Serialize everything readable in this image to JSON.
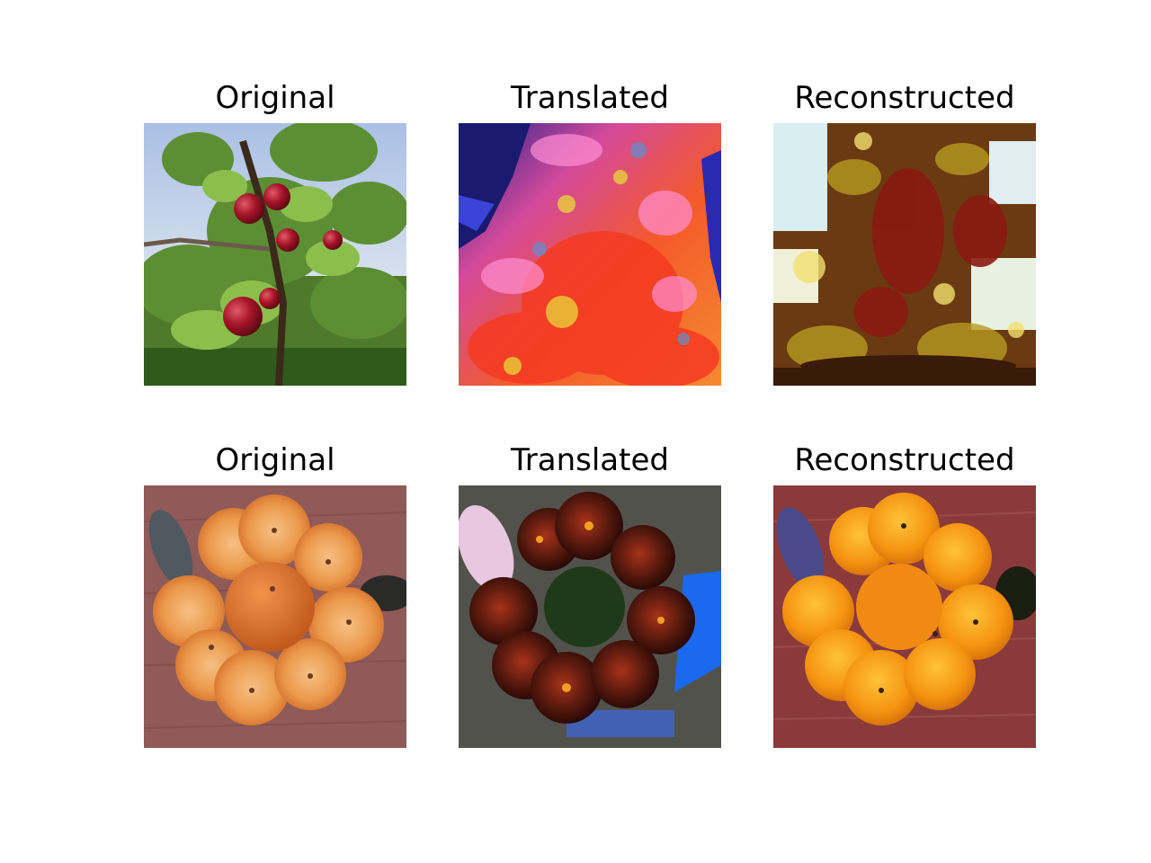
{
  "rows": [
    {
      "panels": [
        {
          "title": "Original"
        },
        {
          "title": "Translated"
        },
        {
          "title": "Reconstructed"
        }
      ]
    },
    {
      "panels": [
        {
          "title": "Original"
        },
        {
          "title": "Translated"
        },
        {
          "title": "Reconstructed"
        }
      ]
    }
  ]
}
